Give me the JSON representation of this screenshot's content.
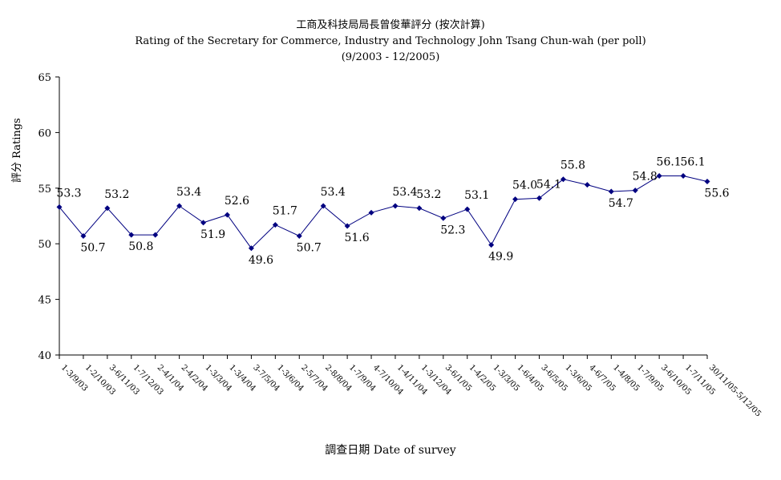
{
  "chart_data": {
    "type": "line",
    "title": "工商及科技局局長曾俊華評分 (按次計算)",
    "subtitle": "Rating of the Secretary for Commerce, Industry and Technology John Tsang Chun-wah  (per poll)",
    "period": "(9/2003 - 12/2005)",
    "xlabel": "調查日期 Date of survey",
    "ylabel": "評分 Ratings",
    "ylim": [
      40,
      65
    ],
    "yticks": [
      40,
      45,
      50,
      55,
      60,
      65
    ],
    "grid": false,
    "legend": "none",
    "line_color": "#000080",
    "categories": [
      "1-3/9/03",
      "1-2/10/03",
      "3-6/11/03",
      "1-7/12/03",
      "2-4/1/04",
      "2-4/2/04",
      "1-3/3/04",
      "1-3/4/04",
      "3-7/5/04",
      "1-3/6/04",
      "2-5/7/04",
      "2-8/8/04",
      "1-7/9/04",
      "4-7/10/04",
      "1-4/11/04",
      "1-3/12/04",
      "3-6/1/05",
      "1-4/2/05",
      "1-3/3/05",
      "1-6/4/05",
      "3-6/5/05",
      "1-3/6/05",
      "4-6/7/05",
      "1-4/8/05",
      "1-7/9/05",
      "3-6/10/05",
      "1-7/11/05",
      "30/11/05-5/12/05"
    ],
    "values": [
      53.3,
      50.7,
      53.2,
      50.8,
      50.8,
      53.4,
      51.9,
      52.6,
      49.6,
      51.7,
      50.7,
      53.4,
      51.6,
      52.8,
      53.4,
      53.2,
      52.3,
      53.1,
      49.9,
      54.0,
      54.1,
      55.8,
      55.3,
      54.7,
      54.8,
      56.1,
      56.1,
      55.6
    ],
    "labels": [
      "53.3",
      "50.7",
      "53.2",
      "50.8",
      "",
      "53.4",
      "51.9",
      "52.6",
      "49.6",
      "51.7",
      "50.7",
      "53.4",
      "51.6",
      "",
      "53.4",
      "53.2",
      "52.3",
      "53.1",
      "49.9",
      "54.0",
      "54.1",
      "55.8",
      "",
      "54.7",
      "54.8",
      "56.1",
      "56.1",
      "55.6"
    ]
  }
}
